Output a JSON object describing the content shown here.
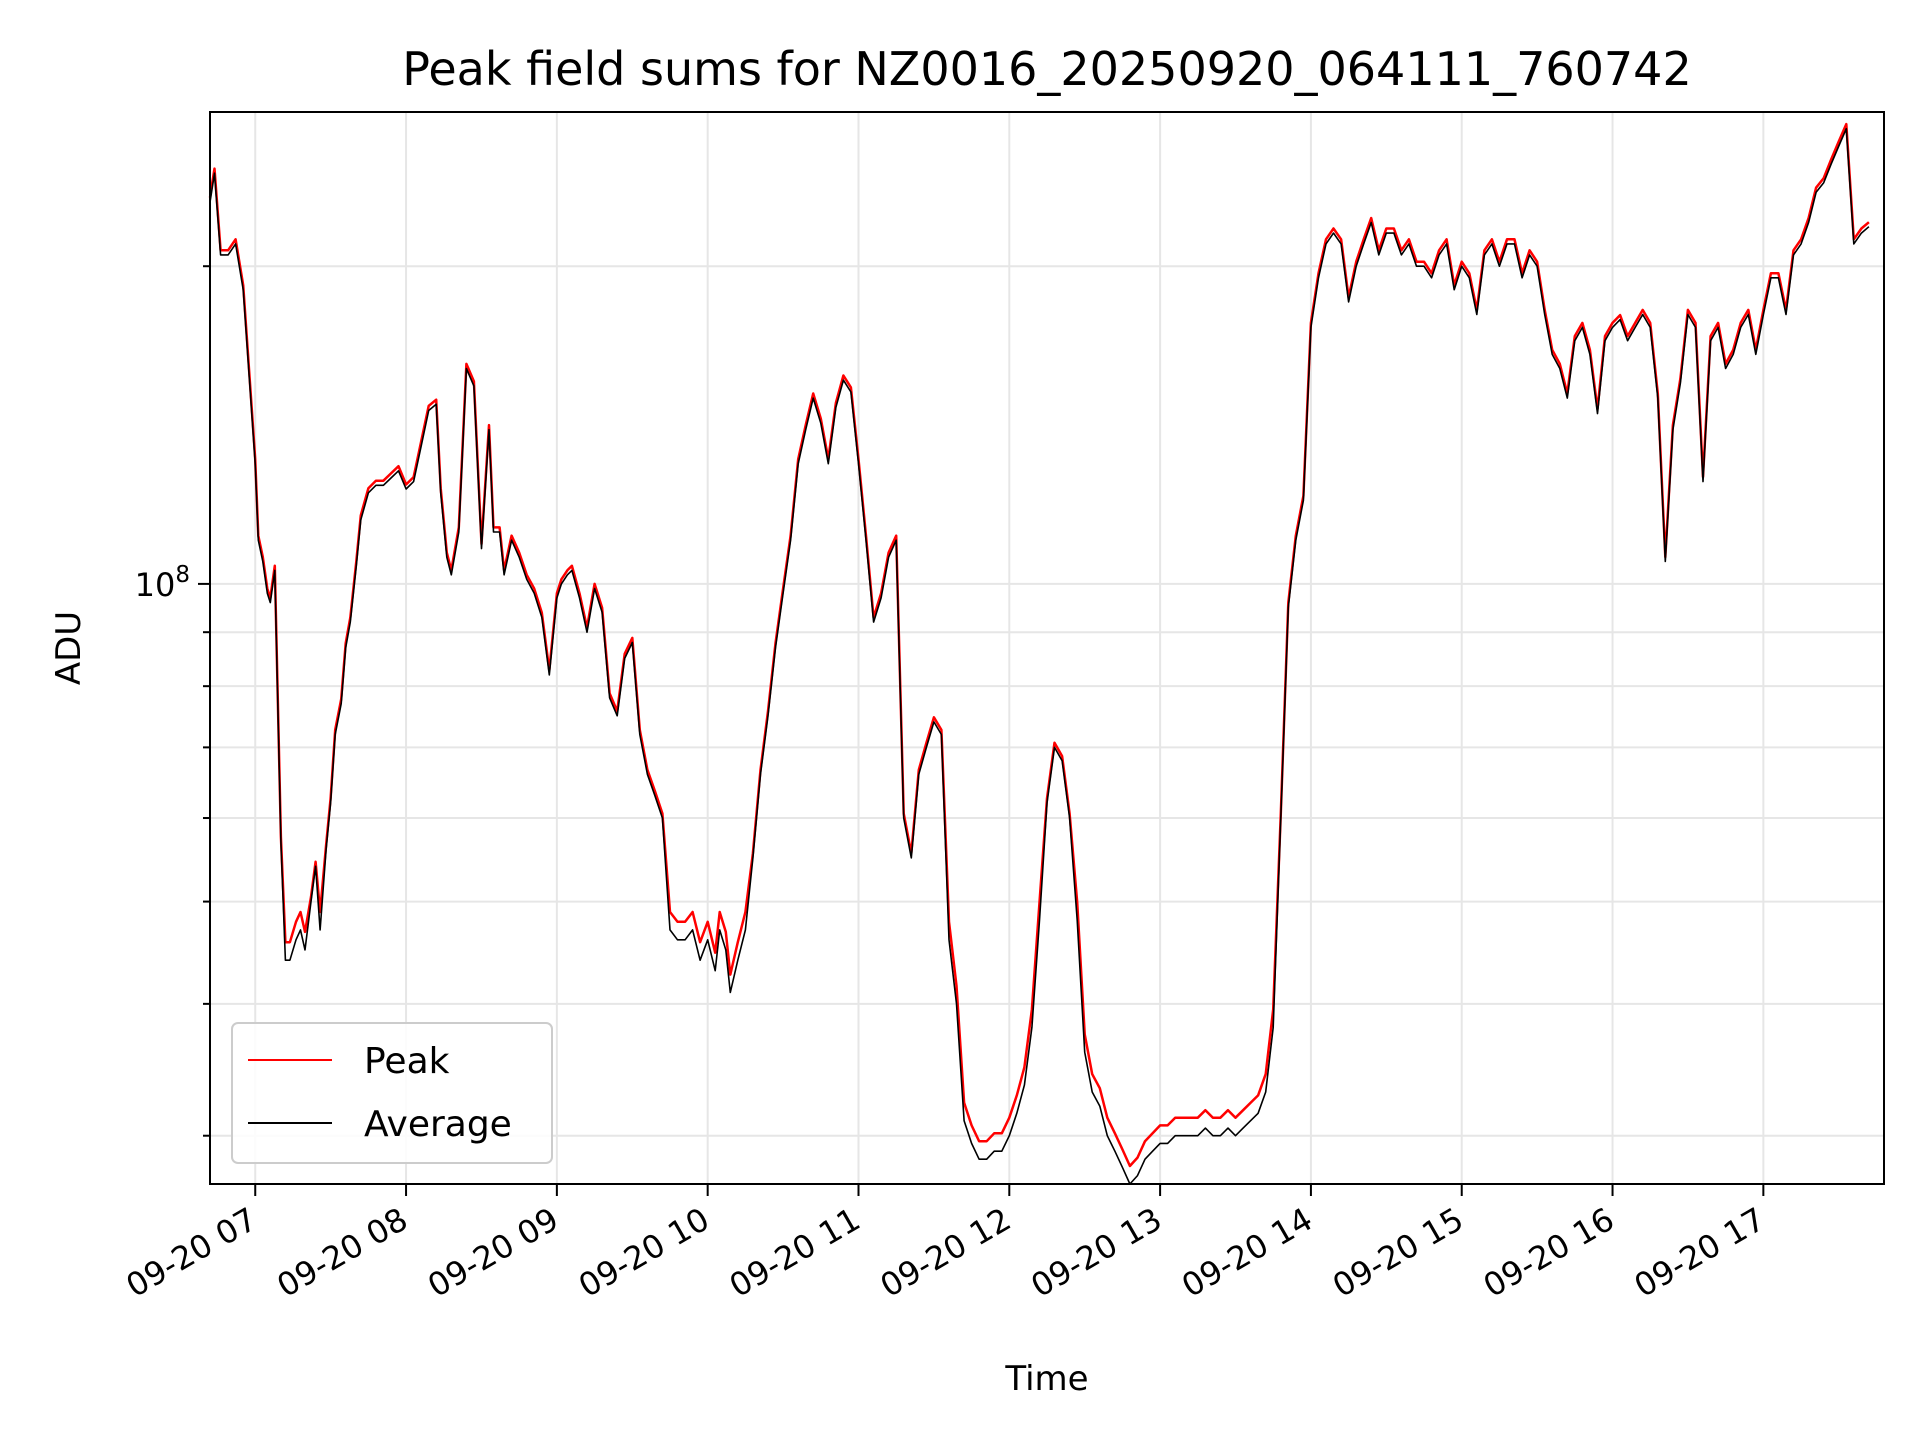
{
  "chart_data": {
    "type": "line",
    "title": "Peak field sums for NZ0016_20250920_064111_760742",
    "xlabel": "Time",
    "ylabel": "ADU",
    "x_unit": "hours",
    "x_range": [
      6.7,
      17.8
    ],
    "xticks": [
      {
        "value": 7,
        "label": "09-20 07"
      },
      {
        "value": 8,
        "label": "09-20 08"
      },
      {
        "value": 9,
        "label": "09-20 09"
      },
      {
        "value": 10,
        "label": "09-20 10"
      },
      {
        "value": 11,
        "label": "09-20 11"
      },
      {
        "value": 12,
        "label": "09-20 12"
      },
      {
        "value": 13,
        "label": "09-20 13"
      },
      {
        "value": 14,
        "label": "09-20 14"
      },
      {
        "value": 15,
        "label": "09-20 15"
      },
      {
        "value": 16,
        "label": "09-20 16"
      },
      {
        "value": 17,
        "label": "09-20 17"
      }
    ],
    "y_scale": "log",
    "y_range": [
      27000000,
      280000000
    ],
    "y_major_ticks": [
      {
        "value": 100000000,
        "base": "10",
        "exp": "8"
      }
    ],
    "y_minor_ticks": [
      30000000,
      40000000,
      50000000,
      60000000,
      70000000,
      80000000,
      90000000,
      200000000
    ],
    "grid": true,
    "legend_position": "lower-left",
    "series": [
      {
        "name": "Peak",
        "color": "#ff0000"
      },
      {
        "name": "Average",
        "color": "#000000"
      }
    ],
    "x": [
      6.7,
      6.73,
      6.77,
      6.82,
      6.87,
      6.92,
      6.97,
      7.0,
      7.02,
      7.05,
      7.08,
      7.1,
      7.13,
      7.17,
      7.2,
      7.23,
      7.27,
      7.3,
      7.33,
      7.37,
      7.4,
      7.43,
      7.47,
      7.5,
      7.53,
      7.57,
      7.6,
      7.63,
      7.67,
      7.7,
      7.75,
      7.8,
      7.85,
      7.9,
      7.95,
      8.0,
      8.05,
      8.1,
      8.15,
      8.2,
      8.23,
      8.27,
      8.3,
      8.35,
      8.4,
      8.45,
      8.5,
      8.55,
      8.58,
      8.62,
      8.65,
      8.7,
      8.75,
      8.8,
      8.85,
      8.9,
      8.95,
      9.0,
      9.03,
      9.07,
      9.1,
      9.15,
      9.2,
      9.25,
      9.3,
      9.35,
      9.4,
      9.45,
      9.5,
      9.55,
      9.6,
      9.65,
      9.7,
      9.75,
      9.8,
      9.85,
      9.9,
      9.95,
      10.0,
      10.05,
      10.08,
      10.12,
      10.15,
      10.2,
      10.25,
      10.3,
      10.35,
      10.4,
      10.45,
      10.5,
      10.55,
      10.6,
      10.65,
      10.7,
      10.75,
      10.8,
      10.85,
      10.9,
      10.95,
      11.0,
      11.05,
      11.1,
      11.15,
      11.2,
      11.25,
      11.3,
      11.35,
      11.4,
      11.45,
      11.5,
      11.55,
      11.6,
      11.65,
      11.7,
      11.75,
      11.8,
      11.85,
      11.9,
      11.95,
      12.0,
      12.05,
      12.1,
      12.15,
      12.2,
      12.25,
      12.3,
      12.35,
      12.4,
      12.45,
      12.5,
      12.55,
      12.6,
      12.65,
      12.7,
      12.75,
      12.8,
      12.85,
      12.9,
      12.95,
      13.0,
      13.05,
      13.1,
      13.15,
      13.2,
      13.25,
      13.3,
      13.35,
      13.4,
      13.45,
      13.5,
      13.55,
      13.6,
      13.65,
      13.7,
      13.75,
      13.8,
      13.85,
      13.9,
      13.95,
      14.0,
      14.05,
      14.1,
      14.15,
      14.2,
      14.25,
      14.3,
      14.35,
      14.4,
      14.45,
      14.5,
      14.55,
      14.6,
      14.65,
      14.7,
      14.75,
      14.8,
      14.85,
      14.9,
      14.95,
      15.0,
      15.05,
      15.1,
      15.15,
      15.2,
      15.25,
      15.3,
      15.35,
      15.4,
      15.45,
      15.5,
      15.55,
      15.6,
      15.65,
      15.7,
      15.75,
      15.8,
      15.85,
      15.9,
      15.95,
      16.0,
      16.05,
      16.1,
      16.15,
      16.2,
      16.25,
      16.3,
      16.35,
      16.4,
      16.45,
      16.5,
      16.55,
      16.6,
      16.65,
      16.7,
      16.75,
      16.8,
      16.85,
      16.9,
      16.95,
      17.0,
      17.05,
      17.1,
      17.15,
      17.2,
      17.25,
      17.3,
      17.35,
      17.4,
      17.45,
      17.5,
      17.55,
      17.6,
      17.65,
      17.7,
      17.73,
      17.76,
      17.8
    ],
    "average": [
      230000000,
      245000000,
      205000000,
      205000000,
      210000000,
      190000000,
      150000000,
      130000000,
      110000000,
      105000000,
      98000000,
      96000000,
      103000000,
      57000000,
      44000000,
      44000000,
      46000000,
      47000000,
      45000000,
      50000000,
      54000000,
      47000000,
      56000000,
      62000000,
      72000000,
      77000000,
      87000000,
      92000000,
      104000000,
      115000000,
      122000000,
      124000000,
      124000000,
      126000000,
      128000000,
      123000000,
      125000000,
      135000000,
      146000000,
      148000000,
      122000000,
      106000000,
      102000000,
      112000000,
      160000000,
      154000000,
      108000000,
      140000000,
      112000000,
      112000000,
      102000000,
      110000000,
      106000000,
      101000000,
      98000000,
      93000000,
      82000000,
      97000000,
      100000000,
      102000000,
      103000000,
      97000000,
      90000000,
      99000000,
      94000000,
      78000000,
      75000000,
      85000000,
      88000000,
      72000000,
      66000000,
      63000000,
      60000000,
      47000000,
      46000000,
      46000000,
      47000000,
      44000000,
      46000000,
      43000000,
      47000000,
      45000000,
      41000000,
      44000000,
      47000000,
      55000000,
      66000000,
      75000000,
      87000000,
      98000000,
      110000000,
      130000000,
      140000000,
      150000000,
      142000000,
      130000000,
      147000000,
      156000000,
      152000000,
      130000000,
      110000000,
      92000000,
      97000000,
      106000000,
      110000000,
      60000000,
      55000000,
      66000000,
      70000000,
      74000000,
      72000000,
      46000000,
      40000000,
      31000000,
      29500000,
      28500000,
      28500000,
      29000000,
      29000000,
      30000000,
      31500000,
      33500000,
      38000000,
      48000000,
      62000000,
      70000000,
      68000000,
      60000000,
      48000000,
      36000000,
      33000000,
      32000000,
      30000000,
      29000000,
      28000000,
      27000000,
      27500000,
      28500000,
      29000000,
      29500000,
      29500000,
      30000000,
      30000000,
      30000000,
      30000000,
      30500000,
      30000000,
      30000000,
      30500000,
      30000000,
      30500000,
      31000000,
      31500000,
      33000000,
      38000000,
      60000000,
      95000000,
      110000000,
      120000000,
      175000000,
      195000000,
      210000000,
      215000000,
      210000000,
      185000000,
      200000000,
      210000000,
      220000000,
      205000000,
      215000000,
      215000000,
      205000000,
      210000000,
      200000000,
      200000000,
      195000000,
      205000000,
      210000000,
      190000000,
      200000000,
      195000000,
      180000000,
      205000000,
      210000000,
      200000000,
      210000000,
      210000000,
      195000000,
      205000000,
      200000000,
      180000000,
      165000000,
      160000000,
      150000000,
      170000000,
      175000000,
      165000000,
      145000000,
      170000000,
      175000000,
      178000000,
      170000000,
      175000000,
      180000000,
      175000000,
      150000000,
      105000000,
      140000000,
      155000000,
      180000000,
      175000000,
      125000000,
      170000000,
      175000000,
      160000000,
      165000000,
      175000000,
      180000000,
      165000000,
      180000000,
      195000000,
      195000000,
      180000000,
      205000000,
      210000000,
      220000000,
      235000000,
      240000000,
      250000000,
      260000000,
      270000000,
      210000000,
      215000000,
      218000000
    ]
  },
  "legend": [
    {
      "name": "Peak",
      "color": "#ff0000"
    },
    {
      "name": "Average",
      "color": "#000000"
    }
  ]
}
